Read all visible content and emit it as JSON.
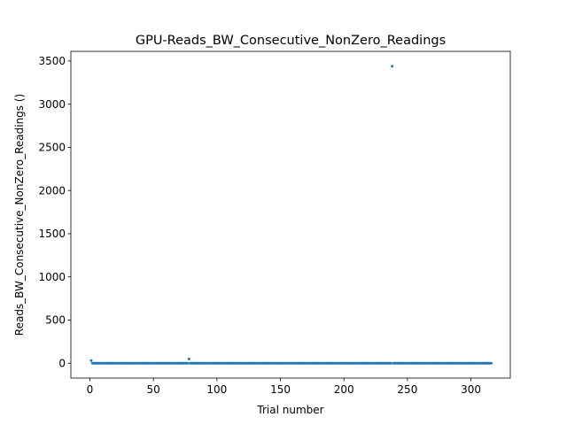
{
  "chart_data": {
    "type": "scatter",
    "title": "GPU-Reads_BW_Consecutive_NonZero_Readings",
    "xlabel": "Trial number",
    "ylabel": "Reads_BW_Consecutive_NonZero_Readings ()",
    "xlim": [
      -15,
      331
    ],
    "ylim": [
      -172,
      3612
    ],
    "xticks": [
      0,
      50,
      100,
      150,
      200,
      250,
      300
    ],
    "yticks": [
      0,
      500,
      1000,
      1500,
      2000,
      2500,
      3000,
      3500
    ],
    "grid": false,
    "marker_color": "#1f77b4",
    "series": [
      {
        "x_range": [
          1,
          316
        ],
        "baseline_value": 0,
        "outliers": [
          {
            "x": 1,
            "y": 30
          },
          {
            "x": 78,
            "y": 50
          },
          {
            "x": 238,
            "y": 3440
          }
        ]
      }
    ]
  }
}
